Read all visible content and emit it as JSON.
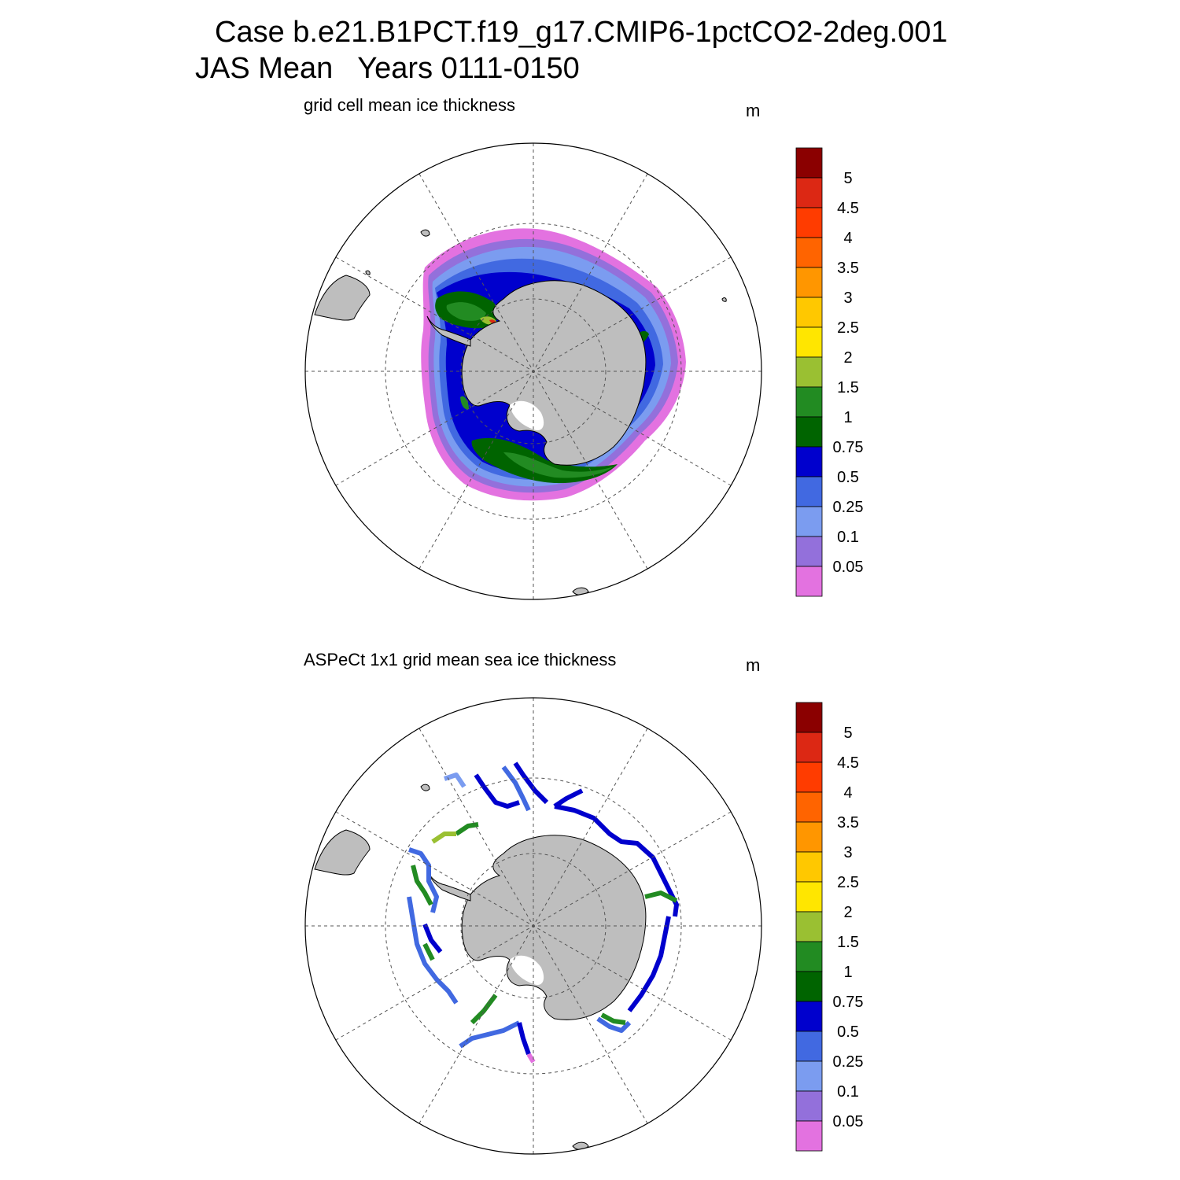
{
  "header": {
    "case_line": "Case b.e21.B1PCT.f19_g17.CMIP6-1pctCO2-2deg.001",
    "period_line": "JAS Mean   Years 0111-0150"
  },
  "panels": [
    {
      "title": "grid cell mean ice thickness",
      "units": "m"
    },
    {
      "title": "ASPeCt 1x1 grid mean sea ice thickness",
      "units": "m"
    }
  ],
  "colorbar": {
    "labels": [
      "5",
      "4.5",
      "4",
      "3.5",
      "3",
      "2.5",
      "2",
      "1.5",
      "1",
      "0.75",
      "0.5",
      "0.25",
      "0.1",
      "0.05"
    ],
    "colors": [
      "#8b0000",
      "#dc2814",
      "#ff3c00",
      "#ff6400",
      "#ff9600",
      "#ffc800",
      "#ffe600",
      "#9ac032",
      "#228b22",
      "#006400",
      "#0000cd",
      "#4169e1",
      "#7b9cf0",
      "#9370db",
      "#e372e0"
    ]
  },
  "colors": {
    "land": "#bebebe",
    "coast": "#000000",
    "grid": "#555555"
  }
}
